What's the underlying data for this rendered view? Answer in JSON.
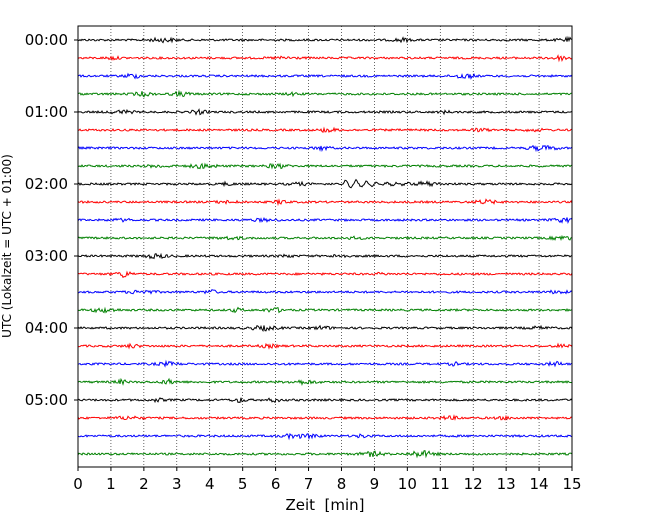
{
  "chart_data": {
    "type": "line",
    "title": "",
    "xlabel": "Zeit  [min]",
    "ylabel": "UTC (Lokalzeit = UTC + 01:00)",
    "xlim": [
      0,
      15
    ],
    "x_ticks": [
      "0",
      "1",
      "2",
      "3",
      "4",
      "5",
      "6",
      "7",
      "8",
      "9",
      "10",
      "11",
      "12",
      "13",
      "14",
      "15"
    ],
    "y_ticks": [
      "00:00",
      "01:00",
      "02:00",
      "03:00",
      "04:00",
      "05:00"
    ],
    "grid": "vertical-dotted",
    "trace_interval_min": 15,
    "trace_colors": [
      "#000000",
      "#ff0000",
      "#0000ff",
      "#008000"
    ],
    "traces": [
      {
        "start": "00:00",
        "color": "#000000"
      },
      {
        "start": "00:15",
        "color": "#ff0000"
      },
      {
        "start": "00:30",
        "color": "#0000ff"
      },
      {
        "start": "00:45",
        "color": "#008000"
      },
      {
        "start": "01:00",
        "color": "#000000"
      },
      {
        "start": "01:15",
        "color": "#ff0000"
      },
      {
        "start": "01:30",
        "color": "#0000ff"
      },
      {
        "start": "01:45",
        "color": "#008000"
      },
      {
        "start": "02:00",
        "color": "#000000",
        "event": {
          "start_min": 7.9,
          "end_min": 10.3,
          "peak_min": 8.2
        }
      },
      {
        "start": "02:15",
        "color": "#ff0000"
      },
      {
        "start": "02:30",
        "color": "#0000ff"
      },
      {
        "start": "02:45",
        "color": "#008000"
      },
      {
        "start": "03:00",
        "color": "#000000"
      },
      {
        "start": "03:15",
        "color": "#ff0000"
      },
      {
        "start": "03:30",
        "color": "#0000ff"
      },
      {
        "start": "03:45",
        "color": "#008000"
      },
      {
        "start": "04:00",
        "color": "#000000"
      },
      {
        "start": "04:15",
        "color": "#ff0000"
      },
      {
        "start": "04:30",
        "color": "#0000ff"
      },
      {
        "start": "04:45",
        "color": "#008000"
      },
      {
        "start": "05:00",
        "color": "#000000"
      },
      {
        "start": "05:15",
        "color": "#ff0000"
      },
      {
        "start": "05:30",
        "color": "#0000ff"
      },
      {
        "start": "05:45",
        "color": "#008000"
      }
    ]
  }
}
